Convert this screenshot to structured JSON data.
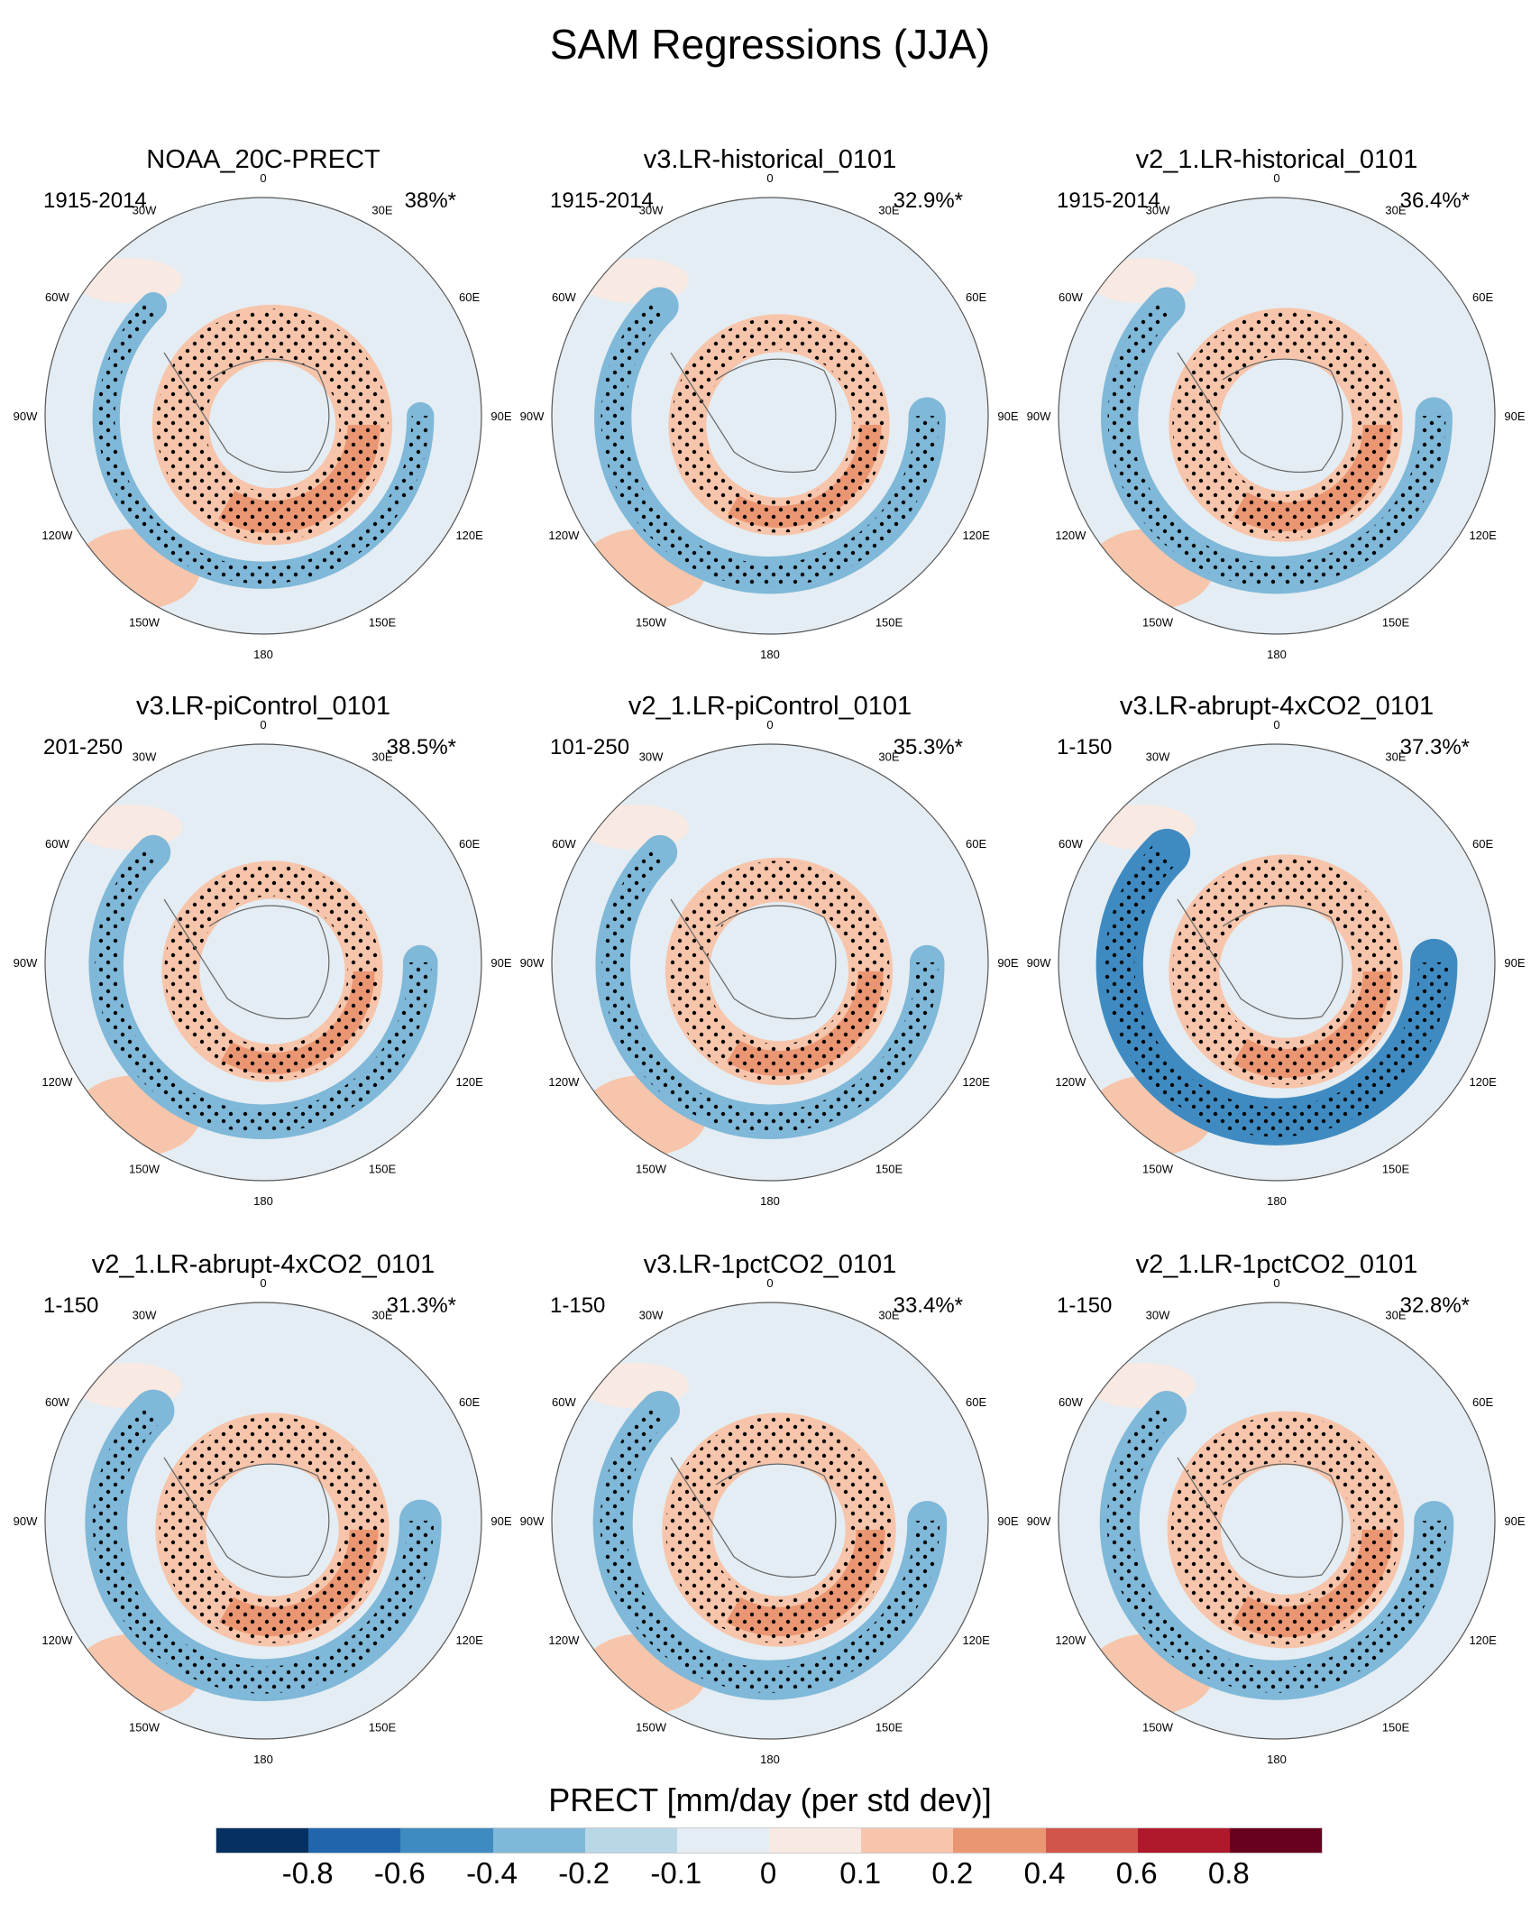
{
  "title": "SAM Regressions (JJA)",
  "chart_data": {
    "type": "heatmap",
    "title": "SAM Regressions (JJA)",
    "projection": "south-polar-stereographic",
    "longitude_labels": [
      "0",
      "30E",
      "60E",
      "90E",
      "120E",
      "150E",
      "180",
      "150W",
      "120W",
      "90W",
      "60W",
      "30W"
    ],
    "panels": [
      {
        "name": "NOAA_20C-PRECT",
        "years": "1915-2014",
        "pct": "38%*",
        "ring": 0.9,
        "blue": 0.55
      },
      {
        "name": "v3.LR-historical_0101",
        "years": "1915-2014",
        "pct": "32.9%*",
        "ring": 0.6,
        "blue": 0.75
      },
      {
        "name": "v2_1.LR-historical_0101",
        "years": "1915-2014",
        "pct": "36.4%*",
        "ring": 0.8,
        "blue": 0.75
      },
      {
        "name": "v3.LR-piControl_0101",
        "years": "201-250",
        "pct": "38.5%*",
        "ring": 0.6,
        "blue": 0.7
      },
      {
        "name": "v2_1.LR-piControl_0101",
        "years": "101-250",
        "pct": "35.3%*",
        "ring": 0.7,
        "blue": 0.7
      },
      {
        "name": "v3.LR-abrupt-4xCO2_0101",
        "years": "1-150",
        "pct": "37.3%*",
        "ring": 0.8,
        "blue": 0.95
      },
      {
        "name": "v2_1.LR-abrupt-4xCO2_0101",
        "years": "1-150",
        "pct": "31.3%*",
        "ring": 0.8,
        "blue": 0.85
      },
      {
        "name": "v3.LR-1pctCO2_0101",
        "years": "1-150",
        "pct": "33.4%*",
        "ring": 0.8,
        "blue": 0.8
      },
      {
        "name": "v2_1.LR-1pctCO2_0101",
        "years": "1-150",
        "pct": "32.8%*",
        "ring": 0.85,
        "blue": 0.8
      }
    ],
    "colorbar": {
      "title": "PRECT [mm/day (per std dev)]",
      "levels": [
        "-0.8",
        "-0.6",
        "-0.4",
        "-0.2",
        "-0.1",
        "0",
        "0.1",
        "0.2",
        "0.4",
        "0.6",
        "0.8"
      ],
      "colors": [
        "#053061",
        "#2166ac",
        "#3f8bc1",
        "#7fb8d8",
        "#b8d8e8",
        "#e4edf3",
        "#f8e9e2",
        "#f7c5ab",
        "#eb9673",
        "#d1554a",
        "#b0192c",
        "#67001f"
      ]
    }
  }
}
